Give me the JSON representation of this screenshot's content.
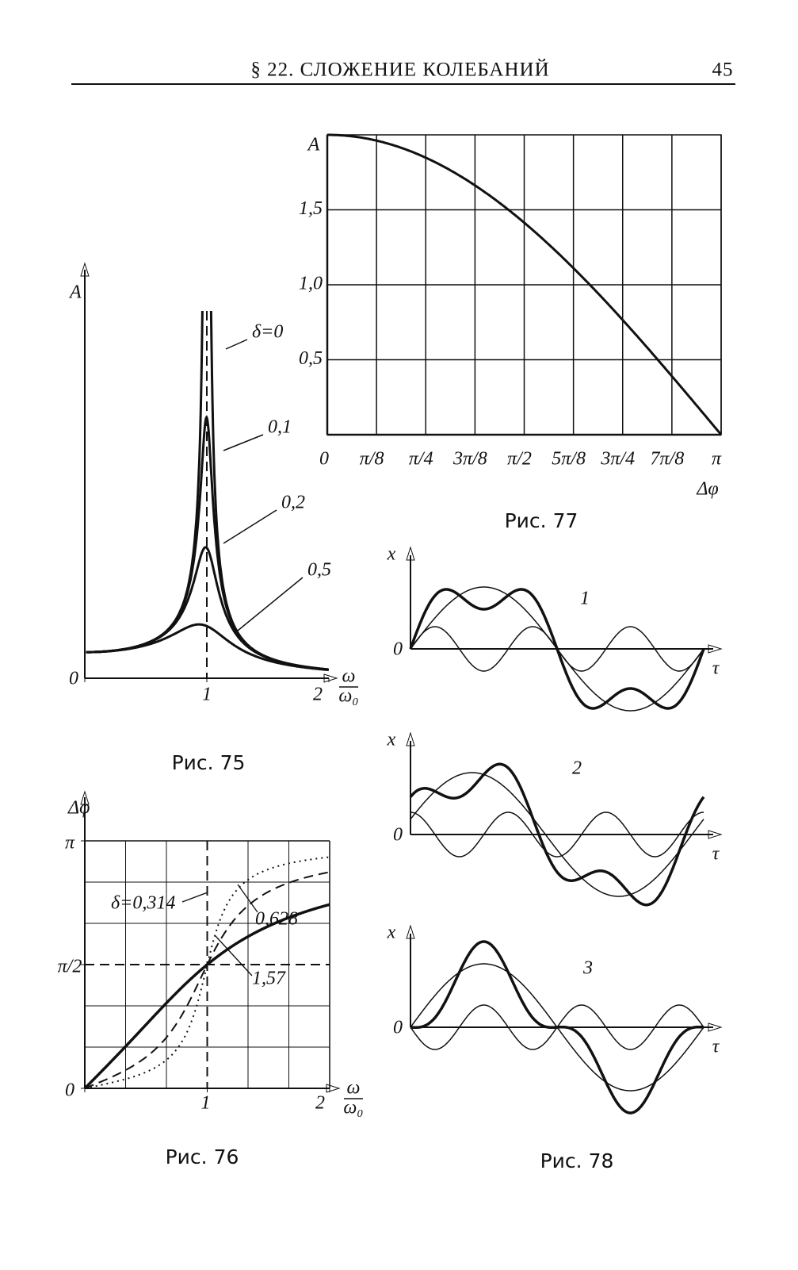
{
  "header": {
    "running_title": "§ 22. СЛОЖЕНИЕ КОЛЕБАНИЙ",
    "page_number": "45"
  },
  "fig75": {
    "caption": "Рис. 75",
    "y_label": "A",
    "x_label_num": "ω",
    "x_label_den": "ω₀",
    "xlim": [
      0,
      2
    ],
    "ylim": [
      0,
      14
    ],
    "xticks": [
      0,
      1,
      2
    ],
    "curves": [
      {
        "value": 0,
        "label": "δ=0"
      },
      {
        "value": 0.1,
        "label": "0,1"
      },
      {
        "value": 0.2,
        "label": "0,2"
      },
      {
        "value": 0.5,
        "label": "0,5"
      }
    ]
  },
  "fig76": {
    "caption": "Рис. 76",
    "y_label": "Δφ",
    "x_label_num": "ω",
    "x_label_den": "ω₀",
    "xlim": [
      0,
      2
    ],
    "ylim": [
      0,
      3.1416
    ],
    "xticks": [
      0,
      1,
      2
    ],
    "yticks": [
      0,
      {
        "value": 1.5708,
        "label": "π/2"
      },
      {
        "value": 3.1416,
        "label": "π"
      }
    ],
    "curves": [
      {
        "value": 0.314,
        "label": "δ=0,314"
      },
      {
        "value": 0.628,
        "label": "0,628"
      },
      {
        "value": 1.57,
        "label": "1,57"
      }
    ]
  },
  "fig77": {
    "caption": "Рис. 77",
    "y_label": "A",
    "x_label": "Δφ",
    "xlim": [
      0,
      3.1416
    ],
    "ylim": [
      0,
      2
    ],
    "xticks": [
      0,
      {
        "value": 0.3927,
        "label": "π/8"
      },
      {
        "value": 0.7854,
        "label": "π/4"
      },
      {
        "value": 1.1781,
        "label": "3π/8"
      },
      {
        "value": 1.5708,
        "label": "π/2"
      },
      {
        "value": 1.9635,
        "label": "5π/8"
      },
      {
        "value": 2.3562,
        "label": "3π/4"
      },
      {
        "value": 2.7489,
        "label": "7π/8"
      },
      {
        "value": 3.1416,
        "label": "π"
      }
    ],
    "yticks": [
      {
        "value": 0.5,
        "label": "0,5"
      },
      {
        "value": 1,
        "label": "1,0"
      },
      {
        "value": 1.5,
        "label": "1,5"
      }
    ]
  },
  "fig78": {
    "caption": "Рис. 78",
    "y_label": "x",
    "x_label": "τ",
    "origin": "0",
    "panels": [
      "1",
      "2",
      "3"
    ]
  }
}
